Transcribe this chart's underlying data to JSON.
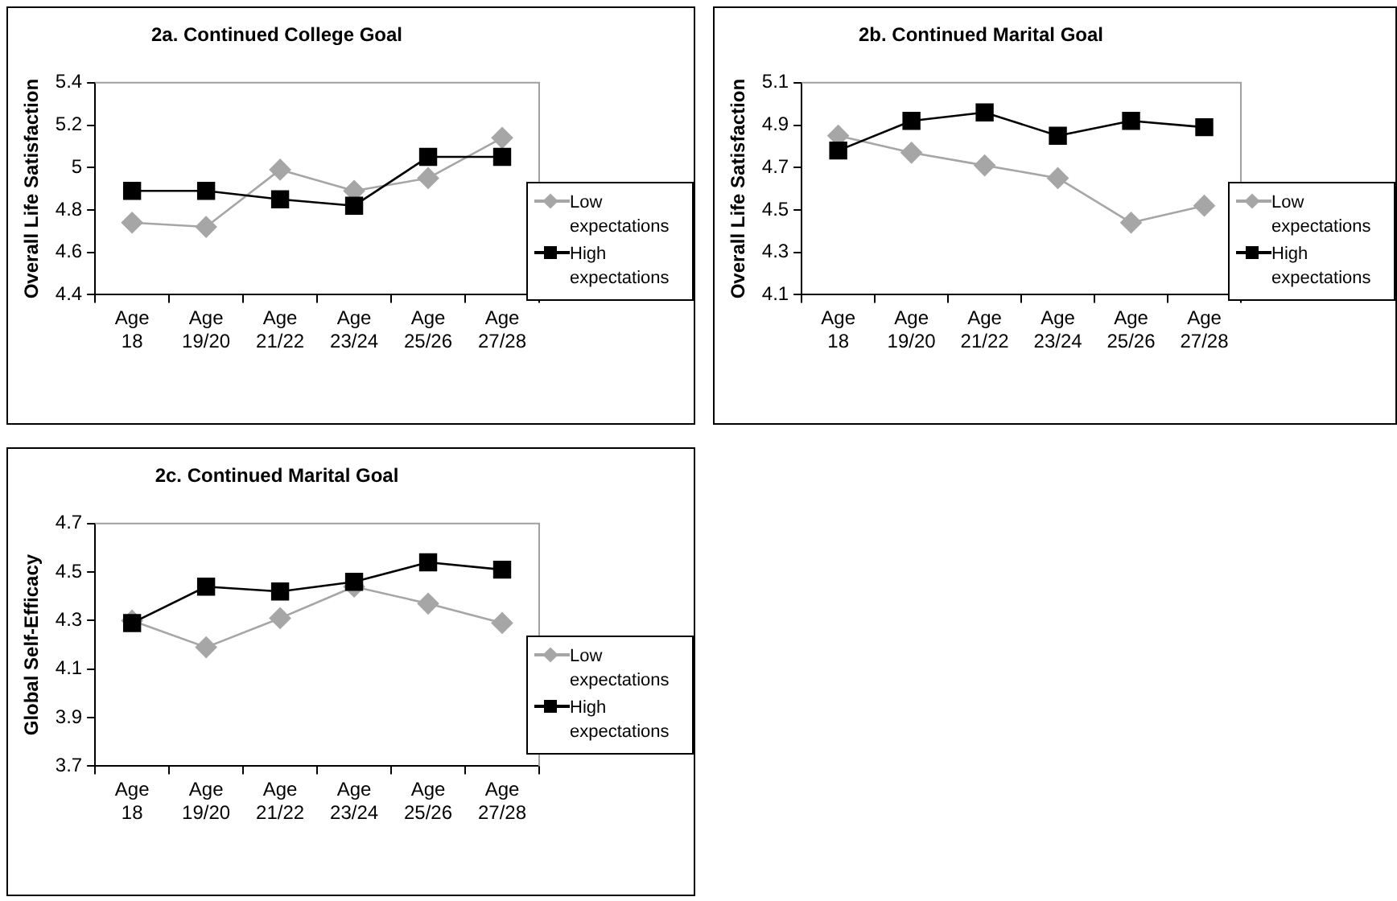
{
  "chart_data": [
    {
      "type": "line",
      "title": "2a. Continued College Goal",
      "ylabel": "Overall Life Satisfaction",
      "categories": [
        "Age 18",
        "Age 19/20",
        "Age 21/22",
        "Age 23/24",
        "Age 25/26",
        "Age 27/28"
      ],
      "ylim": [
        4.4,
        5.4
      ],
      "yticks": [
        4.4,
        4.6,
        4.8,
        5,
        5.2,
        5.4
      ],
      "grid": false,
      "legend": "right",
      "series": [
        {
          "name": "Low expectations",
          "color": "#a6a6a6",
          "marker": "diamond",
          "values": [
            4.74,
            4.72,
            4.99,
            4.89,
            4.95,
            5.14
          ]
        },
        {
          "name": "High expectations",
          "color": "#000000",
          "marker": "square",
          "values": [
            4.89,
            4.89,
            4.85,
            4.82,
            5.05,
            5.05
          ]
        }
      ]
    },
    {
      "type": "line",
      "title": "2b. Continued Marital Goal",
      "ylabel": "Overall Life Satisfaction",
      "categories": [
        "Age 18",
        "Age 19/20",
        "Age 21/22",
        "Age 23/24",
        "Age 25/26",
        "Age 27/28"
      ],
      "ylim": [
        4.1,
        5.1
      ],
      "yticks": [
        4.1,
        4.3,
        4.5,
        4.7,
        4.9,
        5.1
      ],
      "grid": false,
      "legend": "right",
      "series": [
        {
          "name": "Low expectations",
          "color": "#a6a6a6",
          "marker": "diamond",
          "values": [
            4.85,
            4.77,
            4.71,
            4.65,
            4.44,
            4.52
          ]
        },
        {
          "name": "High expectations",
          "color": "#000000",
          "marker": "square",
          "values": [
            4.78,
            4.92,
            4.96,
            4.85,
            4.92,
            4.89
          ]
        }
      ]
    },
    {
      "type": "line",
      "title": "2c. Continued Marital Goal",
      "ylabel": "Global Self-Efficacy",
      "categories": [
        "Age 18",
        "Age 19/20",
        "Age 21/22",
        "Age 23/24",
        "Age 25/26",
        "Age 27/28"
      ],
      "ylim": [
        3.7,
        4.7
      ],
      "yticks": [
        3.7,
        3.9,
        4.1,
        4.3,
        4.5,
        4.7
      ],
      "grid": false,
      "legend": "right",
      "series": [
        {
          "name": "Low expectations",
          "color": "#a6a6a6",
          "marker": "diamond",
          "values": [
            4.3,
            4.19,
            4.31,
            4.44,
            4.37,
            4.29
          ]
        },
        {
          "name": "High expectations",
          "color": "#000000",
          "marker": "square",
          "values": [
            4.29,
            4.44,
            4.42,
            4.46,
            4.54,
            4.51
          ]
        }
      ]
    }
  ]
}
